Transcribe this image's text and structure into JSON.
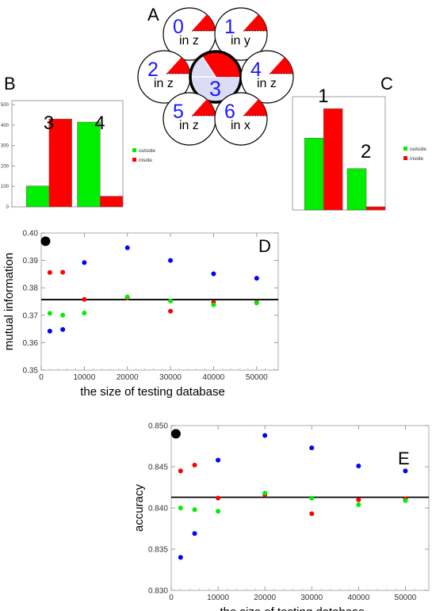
{
  "panel_labels": {
    "a": "A",
    "b": "B",
    "c": "C",
    "d": "D",
    "e": "E"
  },
  "colors": {
    "red": "#ff0000",
    "green": "#00ee00",
    "blue": "#0000ff",
    "center_fill": "#dcdcf6",
    "label_blue": "#1a1aff"
  },
  "diagram": {
    "circles": [
      {
        "number": "0",
        "dir": "in z"
      },
      {
        "number": "1",
        "dir": "in y"
      },
      {
        "number": "2",
        "dir": "in z"
      },
      {
        "number": "3",
        "dir": ""
      },
      {
        "number": "4",
        "dir": "in z"
      },
      {
        "number": "5",
        "dir": "in z"
      },
      {
        "number": "6",
        "dir": "in x"
      }
    ]
  },
  "chart_data": [
    {
      "id": "B",
      "type": "bar",
      "group_labels": [
        "3",
        "4"
      ],
      "series": [
        {
          "name": "outside",
          "color": "#00ee00",
          "values": [
            102,
            415
          ]
        },
        {
          "name": "inside",
          "color": "#ff0000",
          "values": [
            430,
            52
          ]
        }
      ],
      "yticks": [
        "0",
        "100",
        "200",
        "300",
        "400",
        "500"
      ],
      "ylim": [
        0,
        520
      ],
      "legend": "right"
    },
    {
      "id": "C",
      "type": "bar",
      "group_labels": [
        "1",
        "2"
      ],
      "series": [
        {
          "name": "outside",
          "color": "#00ee00",
          "values": [
            330,
            190
          ]
        },
        {
          "name": "inside",
          "color": "#ff0000",
          "values": [
            465,
            15
          ]
        }
      ],
      "ylim": [
        0,
        520
      ],
      "legend": "right"
    },
    {
      "id": "D",
      "type": "scatter",
      "xlabel": "the size of testing database",
      "ylabel": "mutual information",
      "xlim": [
        0,
        55000
      ],
      "ylim": [
        0.35,
        0.4
      ],
      "xticks": [
        "0",
        "10000",
        "20000",
        "30000",
        "40000",
        "50000"
      ],
      "yticks": [
        "0.35",
        "0.36",
        "0.37",
        "0.38",
        "0.39",
        "0.40"
      ],
      "hline": 0.3757,
      "big_point": {
        "x": 1000,
        "y": 0.397
      },
      "series": [
        {
          "color": "#0000ff",
          "points": [
            [
              2000,
              0.3642
            ],
            [
              5000,
              0.3648
            ],
            [
              10000,
              0.3892
            ],
            [
              20000,
              0.3946
            ],
            [
              30000,
              0.39
            ],
            [
              40000,
              0.3851
            ],
            [
              50000,
              0.3835
            ]
          ]
        },
        {
          "color": "#ff0000",
          "points": [
            [
              2000,
              0.3856
            ],
            [
              5000,
              0.3857
            ],
            [
              10000,
              0.3758
            ],
            [
              20000,
              0.3763
            ],
            [
              30000,
              0.3715
            ],
            [
              40000,
              0.3747
            ],
            [
              50000,
              0.3747
            ]
          ]
        },
        {
          "color": "#00ee00",
          "points": [
            [
              2000,
              0.3707
            ],
            [
              5000,
              0.37
            ],
            [
              10000,
              0.3708
            ],
            [
              20000,
              0.3767
            ],
            [
              30000,
              0.3752
            ],
            [
              40000,
              0.3738
            ],
            [
              50000,
              0.3745
            ]
          ]
        }
      ]
    },
    {
      "id": "E",
      "type": "scatter",
      "xlabel": "the size of testing database",
      "ylabel": "accuracy",
      "xlim": [
        0,
        55000
      ],
      "ylim": [
        0.83,
        0.85
      ],
      "xticks": [
        "0",
        "10000",
        "20000",
        "30000",
        "40000",
        "50000"
      ],
      "yticks": [
        "0.830",
        "0.835",
        "0.840",
        "0.845",
        "0.850"
      ],
      "hline": 0.8413,
      "big_point": {
        "x": 1000,
        "y": 0.849
      },
      "series": [
        {
          "color": "#0000ff",
          "points": [
            [
              2000,
              0.834
            ],
            [
              5000,
              0.8369
            ],
            [
              10000,
              0.8458
            ],
            [
              20000,
              0.8488
            ],
            [
              30000,
              0.8473
            ],
            [
              40000,
              0.8451
            ],
            [
              50000,
              0.8445
            ]
          ]
        },
        {
          "color": "#ff0000",
          "points": [
            [
              2000,
              0.8445
            ],
            [
              5000,
              0.8452
            ],
            [
              10000,
              0.8412
            ],
            [
              20000,
              0.8416
            ],
            [
              30000,
              0.8393
            ],
            [
              40000,
              0.841
            ],
            [
              50000,
              0.8411
            ]
          ]
        },
        {
          "color": "#00ee00",
          "points": [
            [
              2000,
              0.84
            ],
            [
              5000,
              0.8398
            ],
            [
              10000,
              0.8396
            ],
            [
              20000,
              0.8418
            ],
            [
              30000,
              0.8412
            ],
            [
              40000,
              0.8404
            ],
            [
              50000,
              0.8409
            ]
          ]
        }
      ]
    }
  ]
}
